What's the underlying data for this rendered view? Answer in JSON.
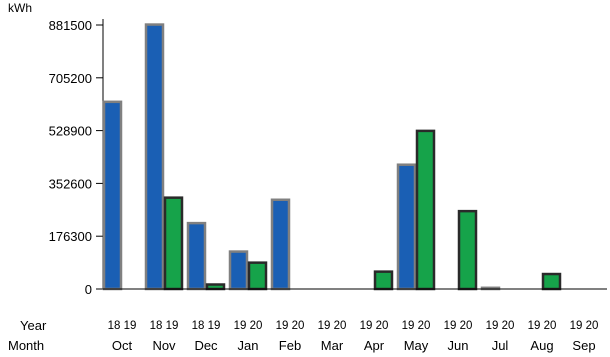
{
  "chart_data": {
    "type": "bar",
    "ylabel": "kWh",
    "ylim": [
      0,
      881500
    ],
    "yticks": [
      "0",
      "176300",
      "352600",
      "528900",
      "705200",
      "881500"
    ],
    "ytick_values": [
      0,
      176300,
      352600,
      528900,
      705200,
      881500
    ],
    "grid": false,
    "row_labels": {
      "year": "Year",
      "month": "Month"
    },
    "categories": [
      "Oct",
      "Nov",
      "Dec",
      "Jan",
      "Feb",
      "Mar",
      "Apr",
      "May",
      "Jun",
      "Jul",
      "Aug",
      "Sep"
    ],
    "year_pairs": [
      [
        "18",
        "19"
      ],
      [
        "18",
        "19"
      ],
      [
        "18",
        "19"
      ],
      [
        "19",
        "20"
      ],
      [
        "19",
        "20"
      ],
      [
        "19",
        "20"
      ],
      [
        "19",
        "20"
      ],
      [
        "19",
        "20"
      ],
      [
        "19",
        "20"
      ],
      [
        "19",
        "20"
      ],
      [
        "19",
        "20"
      ],
      [
        "19",
        "20"
      ]
    ],
    "series": [
      {
        "color": "#1a5fb4",
        "values": [
          625000,
          883000,
          220000,
          125000,
          298000,
          0,
          0,
          415000,
          0,
          4000,
          0,
          0
        ]
      },
      {
        "color": "#16a34a",
        "values": [
          0,
          305000,
          15000,
          88000,
          0,
          0,
          58000,
          528000,
          260000,
          0,
          50000,
          0
        ]
      }
    ]
  }
}
